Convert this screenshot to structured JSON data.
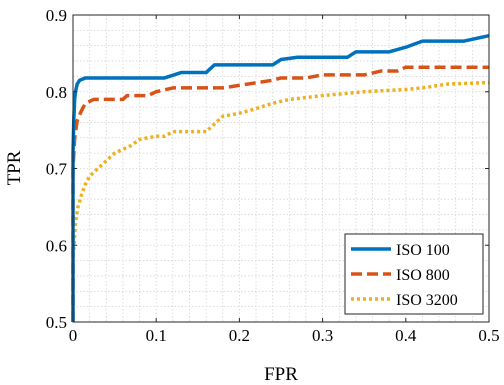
{
  "chart_data": {
    "type": "line",
    "xlabel": "FPR",
    "ylabel": "TPR",
    "xlim": [
      0,
      0.5
    ],
    "ylim": [
      0.5,
      0.9
    ],
    "xticks": [
      "0",
      "0.1",
      "0.2",
      "0.3",
      "0.4",
      "0.5"
    ],
    "yticks": [
      "0.5",
      "0.6",
      "0.7",
      "0.8",
      "0.9"
    ],
    "grid": true,
    "legend_position": "bottom-right",
    "series": [
      {
        "name": "ISO 100",
        "color": "#0072bd",
        "style": "solid",
        "points": [
          [
            0,
            0.5
          ],
          [
            0,
            0.72
          ],
          [
            0.001,
            0.765
          ],
          [
            0.002,
            0.79
          ],
          [
            0.003,
            0.8
          ],
          [
            0.005,
            0.81
          ],
          [
            0.008,
            0.815
          ],
          [
            0.015,
            0.818
          ],
          [
            0.11,
            0.818
          ],
          [
            0.13,
            0.825
          ],
          [
            0.16,
            0.825
          ],
          [
            0.17,
            0.835
          ],
          [
            0.24,
            0.835
          ],
          [
            0.25,
            0.842
          ],
          [
            0.27,
            0.845
          ],
          [
            0.33,
            0.845
          ],
          [
            0.34,
            0.852
          ],
          [
            0.38,
            0.852
          ],
          [
            0.4,
            0.858
          ],
          [
            0.42,
            0.866
          ],
          [
            0.47,
            0.866
          ],
          [
            0.5,
            0.873
          ]
        ]
      },
      {
        "name": "ISO 800",
        "color": "#d95319",
        "style": "dashed",
        "points": [
          [
            0,
            0.5
          ],
          [
            0,
            0.7
          ],
          [
            0.002,
            0.74
          ],
          [
            0.005,
            0.762
          ],
          [
            0.01,
            0.775
          ],
          [
            0.015,
            0.785
          ],
          [
            0.025,
            0.79
          ],
          [
            0.06,
            0.79
          ],
          [
            0.065,
            0.795
          ],
          [
            0.09,
            0.795
          ],
          [
            0.1,
            0.8
          ],
          [
            0.12,
            0.805
          ],
          [
            0.18,
            0.805
          ],
          [
            0.21,
            0.81
          ],
          [
            0.24,
            0.815
          ],
          [
            0.25,
            0.818
          ],
          [
            0.28,
            0.818
          ],
          [
            0.3,
            0.822
          ],
          [
            0.35,
            0.822
          ],
          [
            0.37,
            0.827
          ],
          [
            0.39,
            0.827
          ],
          [
            0.4,
            0.832
          ],
          [
            0.5,
            0.832
          ]
        ]
      },
      {
        "name": "ISO 3200",
        "color": "#edb120",
        "style": "dotted",
        "points": [
          [
            0,
            0.5
          ],
          [
            0,
            0.58
          ],
          [
            0.003,
            0.63
          ],
          [
            0.006,
            0.65
          ],
          [
            0.01,
            0.665
          ],
          [
            0.015,
            0.68
          ],
          [
            0.02,
            0.69
          ],
          [
            0.03,
            0.7
          ],
          [
            0.04,
            0.71
          ],
          [
            0.05,
            0.72
          ],
          [
            0.07,
            0.73
          ],
          [
            0.08,
            0.738
          ],
          [
            0.1,
            0.742
          ],
          [
            0.11,
            0.742
          ],
          [
            0.12,
            0.748
          ],
          [
            0.16,
            0.748
          ],
          [
            0.17,
            0.758
          ],
          [
            0.18,
            0.768
          ],
          [
            0.2,
            0.772
          ],
          [
            0.22,
            0.778
          ],
          [
            0.24,
            0.785
          ],
          [
            0.26,
            0.79
          ],
          [
            0.3,
            0.795
          ],
          [
            0.33,
            0.798
          ],
          [
            0.35,
            0.8
          ],
          [
            0.4,
            0.803
          ],
          [
            0.42,
            0.805
          ],
          [
            0.45,
            0.81
          ],
          [
            0.5,
            0.812
          ]
        ]
      }
    ]
  }
}
